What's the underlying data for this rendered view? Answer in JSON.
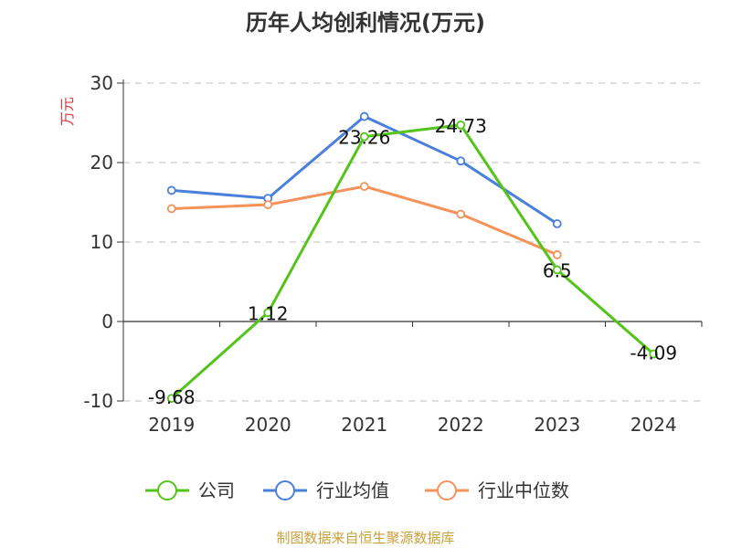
{
  "chart_data": {
    "type": "line",
    "title": "历年人均创利情况(万元)",
    "unit_label": "万元",
    "categories": [
      "2019",
      "2020",
      "2021",
      "2022",
      "2023",
      "2024"
    ],
    "y_ticks": [
      "30",
      "20",
      "10",
      "0",
      "-10"
    ],
    "ylim": [
      -10,
      30
    ],
    "grid": true,
    "legend_position": "bottom",
    "series": [
      {
        "name": "公司",
        "color": "#52c41a",
        "values": [
          -9.68,
          1.12,
          23.26,
          24.73,
          6.5,
          -4.09
        ],
        "labels": [
          "-9.68",
          "1.12",
          "23.26",
          "24.73",
          "6.5",
          "-4.09"
        ]
      },
      {
        "name": "行业均值",
        "color": "#4a7fdb",
        "values": [
          16.5,
          15.5,
          25.8,
          20.2,
          12.3,
          null
        ]
      },
      {
        "name": "行业中位数",
        "color": "#f5925a",
        "values": [
          14.2,
          14.7,
          17.0,
          13.5,
          8.4,
          null
        ]
      }
    ]
  },
  "footer": "制图数据来自恒生聚源数据库"
}
